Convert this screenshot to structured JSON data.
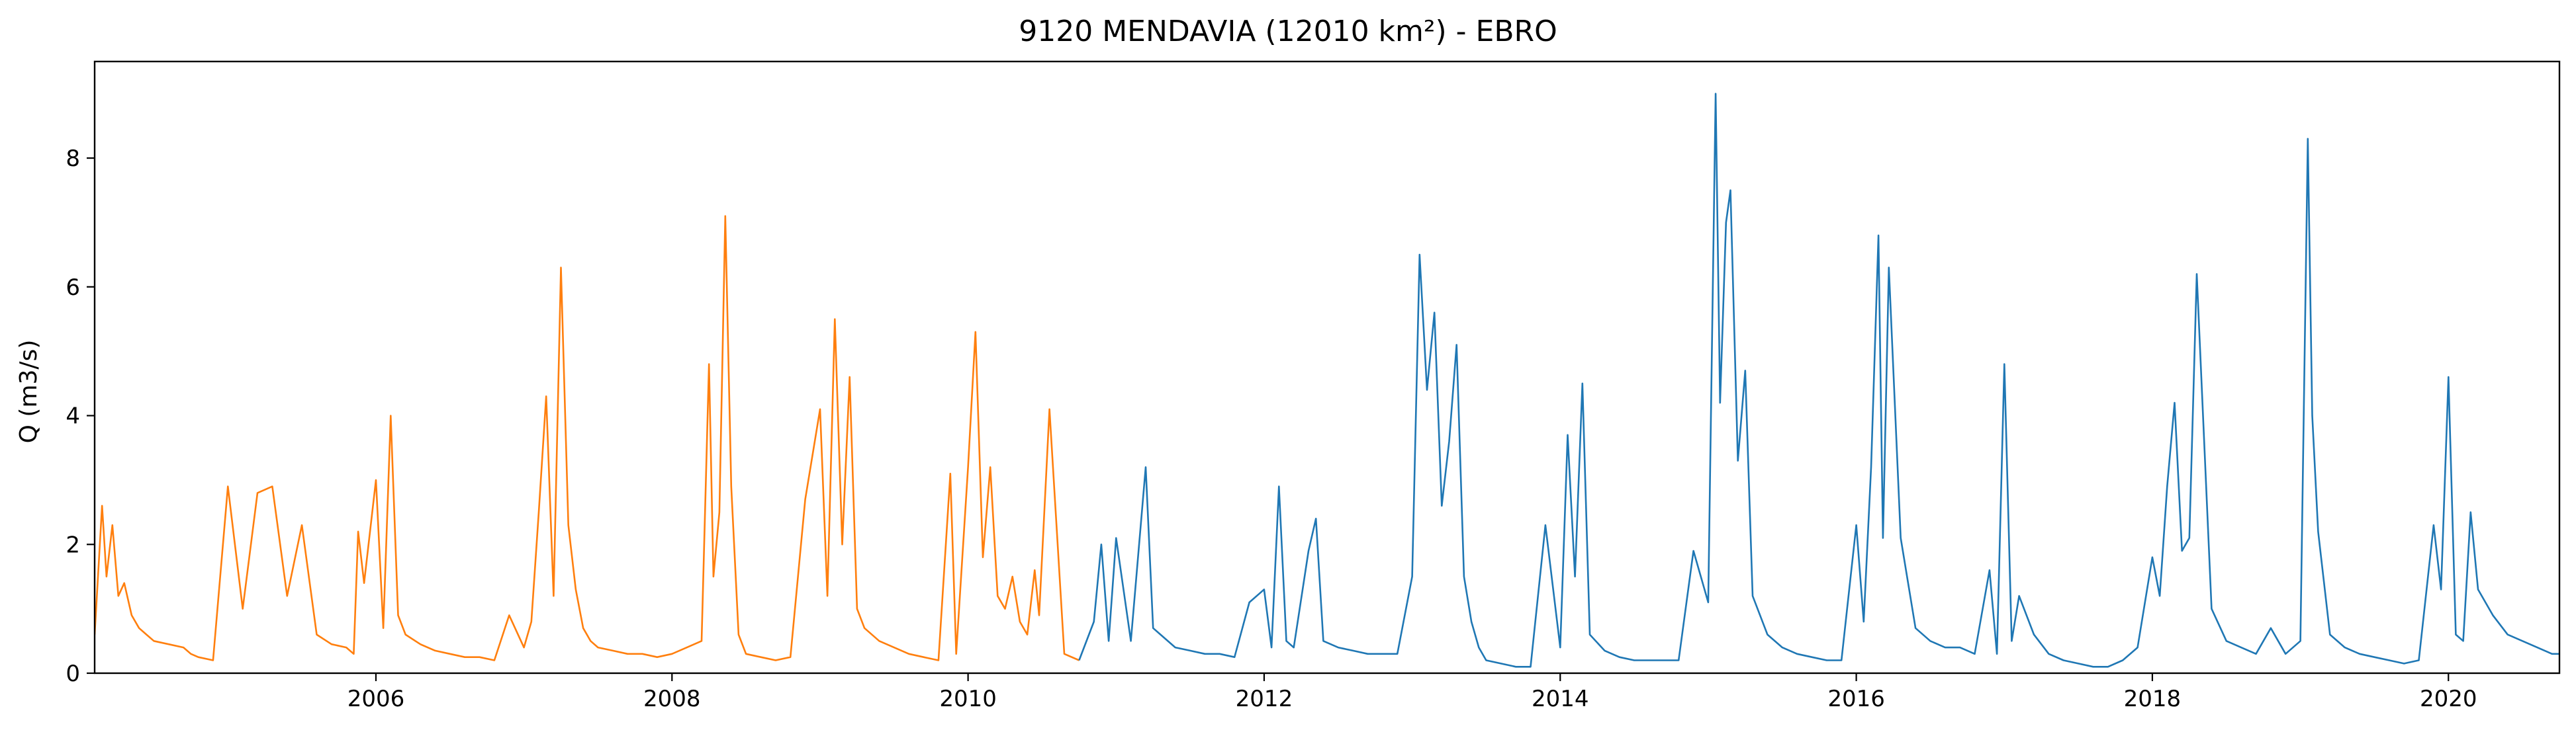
{
  "chart_data": {
    "type": "line",
    "title": "9120 MENDAVIA (12010 km²) - EBRO",
    "xlabel": "",
    "ylabel": "Q (m3/s)",
    "xlim": [
      2004.1,
      2020.75
    ],
    "ylim": [
      0,
      9.5
    ],
    "x_ticks": [
      2006,
      2008,
      2010,
      2012,
      2014,
      2016,
      2018,
      2020
    ],
    "y_ticks": [
      0,
      2,
      4,
      6,
      8
    ],
    "grid": false,
    "legend": "none",
    "series": [
      {
        "color": "#ff7f0e",
        "x": [
          2004.1,
          2004.15,
          2004.18,
          2004.22,
          2004.26,
          2004.3,
          2004.35,
          2004.4,
          2004.45,
          2004.5,
          2004.6,
          2004.7,
          2004.75,
          2004.8,
          2004.9,
          2005.0,
          2005.1,
          2005.2,
          2005.3,
          2005.4,
          2005.5,
          2005.6,
          2005.7,
          2005.8,
          2005.85,
          2005.88,
          2005.92,
          2006.0,
          2006.05,
          2006.1,
          2006.15,
          2006.2,
          2006.3,
          2006.4,
          2006.5,
          2006.6,
          2006.7,
          2006.8,
          2006.9,
          2007.0,
          2007.05,
          2007.1,
          2007.15,
          2007.2,
          2007.25,
          2007.3,
          2007.35,
          2007.4,
          2007.45,
          2007.5,
          2007.6,
          2007.7,
          2007.8,
          2007.9,
          2008.0,
          2008.1,
          2008.2,
          2008.25,
          2008.28,
          2008.32,
          2008.36,
          2008.4,
          2008.45,
          2008.5,
          2008.6,
          2008.7,
          2008.8,
          2008.9,
          2009.0,
          2009.05,
          2009.1,
          2009.15,
          2009.2,
          2009.25,
          2009.3,
          2009.4,
          2009.5,
          2009.6,
          2009.7,
          2009.8,
          2009.88,
          2009.92,
          2010.0,
          2010.05,
          2010.1,
          2010.15,
          2010.2,
          2010.25,
          2010.3,
          2010.35,
          2010.4,
          2010.45,
          2010.48,
          2010.55,
          2010.65,
          2010.75
        ],
        "y": [
          0.6,
          2.6,
          1.5,
          2.3,
          1.2,
          1.4,
          0.9,
          0.7,
          0.6,
          0.5,
          0.45,
          0.4,
          0.3,
          0.25,
          0.2,
          2.9,
          1.0,
          2.8,
          2.9,
          1.2,
          2.3,
          0.6,
          0.45,
          0.4,
          0.3,
          2.2,
          1.4,
          3.0,
          0.7,
          4.0,
          0.9,
          0.6,
          0.45,
          0.35,
          0.3,
          0.25,
          0.25,
          0.2,
          0.9,
          0.4,
          0.8,
          2.5,
          4.3,
          1.2,
          6.3,
          2.3,
          1.3,
          0.7,
          0.5,
          0.4,
          0.35,
          0.3,
          0.3,
          0.25,
          0.3,
          0.4,
          0.5,
          4.8,
          1.5,
          2.5,
          7.1,
          2.9,
          0.6,
          0.3,
          0.25,
          0.2,
          0.25,
          2.7,
          4.1,
          1.2,
          5.5,
          2.0,
          4.6,
          1.0,
          0.7,
          0.5,
          0.4,
          0.3,
          0.25,
          0.2,
          3.1,
          0.3,
          3.2,
          5.3,
          1.8,
          3.2,
          1.2,
          1.0,
          1.5,
          0.8,
          0.6,
          1.6,
          0.9,
          4.1,
          0.3,
          0.2
        ]
      },
      {
        "color": "#1f77b4",
        "x": [
          2010.75,
          2010.85,
          2010.9,
          2010.95,
          2011.0,
          2011.1,
          2011.2,
          2011.25,
          2011.3,
          2011.4,
          2011.5,
          2011.6,
          2011.7,
          2011.8,
          2011.9,
          2012.0,
          2012.05,
          2012.1,
          2012.15,
          2012.2,
          2012.3,
          2012.35,
          2012.4,
          2012.5,
          2012.6,
          2012.7,
          2012.8,
          2012.9,
          2013.0,
          2013.05,
          2013.1,
          2013.15,
          2013.2,
          2013.25,
          2013.3,
          2013.35,
          2013.4,
          2013.45,
          2013.5,
          2013.6,
          2013.7,
          2013.8,
          2013.9,
          2014.0,
          2014.05,
          2014.1,
          2014.15,
          2014.2,
          2014.3,
          2014.4,
          2014.5,
          2014.6,
          2014.7,
          2014.8,
          2014.9,
          2015.0,
          2015.05,
          2015.08,
          2015.12,
          2015.15,
          2015.2,
          2015.25,
          2015.3,
          2015.4,
          2015.5,
          2015.6,
          2015.7,
          2015.8,
          2015.9,
          2016.0,
          2016.05,
          2016.1,
          2016.15,
          2016.18,
          2016.22,
          2016.3,
          2016.4,
          2016.5,
          2016.6,
          2016.7,
          2016.8,
          2016.9,
          2016.95,
          2017.0,
          2017.05,
          2017.1,
          2017.2,
          2017.3,
          2017.4,
          2017.5,
          2017.6,
          2017.7,
          2017.8,
          2017.9,
          2018.0,
          2018.05,
          2018.1,
          2018.15,
          2018.2,
          2018.25,
          2018.3,
          2018.4,
          2018.5,
          2018.6,
          2018.7,
          2018.8,
          2018.9,
          2019.0,
          2019.05,
          2019.08,
          2019.12,
          2019.2,
          2019.3,
          2019.4,
          2019.5,
          2019.6,
          2019.7,
          2019.8,
          2019.9,
          2019.95,
          2020.0,
          2020.05,
          2020.1,
          2020.15,
          2020.2,
          2020.3,
          2020.4,
          2020.5,
          2020.6,
          2020.7,
          2020.75
        ],
        "y": [
          0.2,
          0.8,
          2.0,
          0.5,
          2.1,
          0.5,
          3.2,
          0.7,
          0.6,
          0.4,
          0.35,
          0.3,
          0.3,
          0.25,
          1.1,
          1.3,
          0.4,
          2.9,
          0.5,
          0.4,
          1.9,
          2.4,
          0.5,
          0.4,
          0.35,
          0.3,
          0.3,
          0.3,
          1.5,
          6.5,
          4.4,
          5.6,
          2.6,
          3.6,
          5.1,
          1.5,
          0.8,
          0.4,
          0.2,
          0.15,
          0.1,
          0.1,
          2.3,
          0.4,
          3.7,
          1.5,
          4.5,
          0.6,
          0.35,
          0.25,
          0.2,
          0.2,
          0.2,
          0.2,
          1.9,
          1.1,
          9.0,
          4.2,
          7.0,
          7.5,
          3.3,
          4.7,
          1.2,
          0.6,
          0.4,
          0.3,
          0.25,
          0.2,
          0.2,
          2.3,
          0.8,
          3.2,
          6.8,
          2.1,
          6.3,
          2.1,
          0.7,
          0.5,
          0.4,
          0.4,
          0.3,
          1.6,
          0.3,
          4.8,
          0.5,
          1.2,
          0.6,
          0.3,
          0.2,
          0.15,
          0.1,
          0.1,
          0.2,
          0.4,
          1.8,
          1.2,
          2.9,
          4.2,
          1.9,
          2.1,
          6.2,
          1.0,
          0.5,
          0.4,
          0.3,
          0.7,
          0.3,
          0.5,
          8.3,
          4.0,
          2.2,
          0.6,
          0.4,
          0.3,
          0.25,
          0.2,
          0.15,
          0.2,
          2.3,
          1.3,
          4.6,
          0.6,
          0.5,
          2.5,
          1.3,
          0.9,
          0.6,
          0.5,
          0.4,
          0.3,
          0.3
        ]
      }
    ]
  }
}
